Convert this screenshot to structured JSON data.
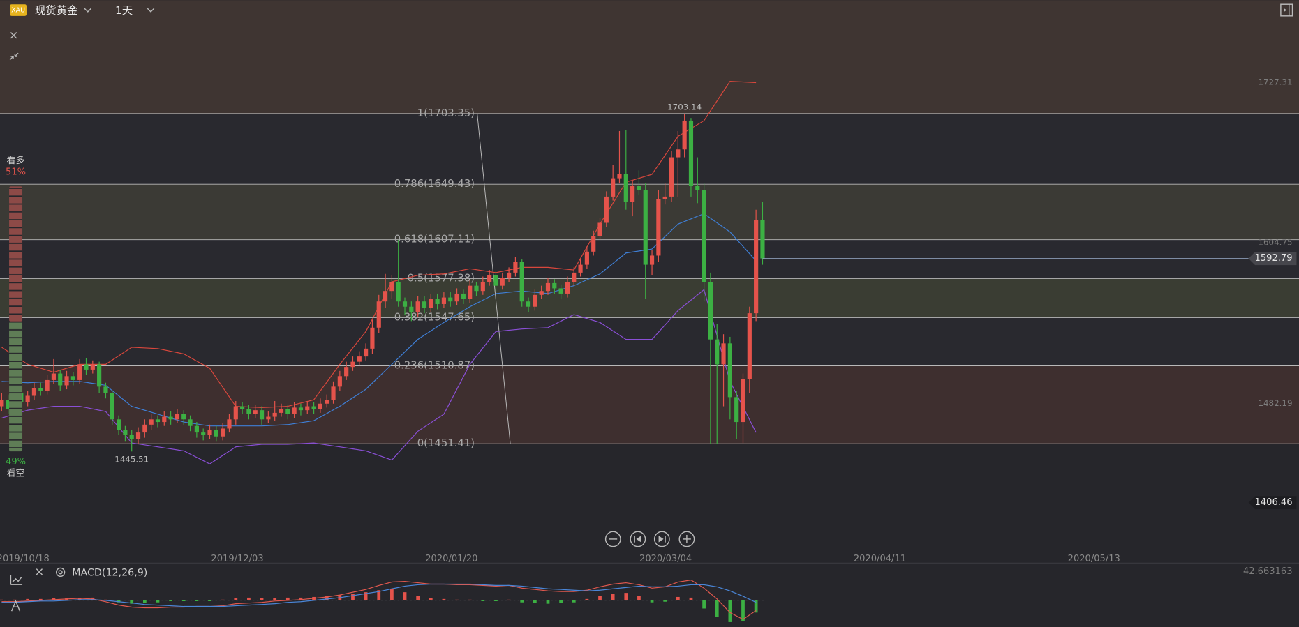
{
  "header": {
    "icon": "XAU",
    "symbol": "现货黄金",
    "interval": "1天"
  },
  "chart_data": [
    {
      "type": "candlestick",
      "ohlc": [
        [
          1480,
          1490,
          1476,
          1485
        ],
        [
          1485,
          1489,
          1474,
          1478
        ],
        [
          1478,
          1494,
          1475,
          1490
        ],
        [
          1490,
          1493,
          1479,
          1483
        ],
        [
          1483,
          1492,
          1480,
          1488
        ],
        [
          1488,
          1498,
          1485,
          1494
        ],
        [
          1494,
          1498,
          1488,
          1492
        ],
        [
          1492,
          1504,
          1489,
          1500
        ],
        [
          1500,
          1516,
          1497,
          1505
        ],
        [
          1505,
          1508,
          1492,
          1496
        ],
        [
          1496,
          1507,
          1493,
          1503
        ],
        [
          1503,
          1506,
          1496,
          1500
        ],
        [
          1500,
          1516,
          1497,
          1512
        ],
        [
          1512,
          1517,
          1504,
          1508
        ],
        [
          1508,
          1515,
          1505,
          1512
        ],
        [
          1512,
          1514,
          1490,
          1495
        ],
        [
          1495,
          1498,
          1486,
          1490
        ],
        [
          1490,
          1492,
          1466,
          1470
        ],
        [
          1470,
          1473,
          1458,
          1462
        ],
        [
          1462,
          1465,
          1453,
          1458
        ],
        [
          1458,
          1462,
          1445.51,
          1455
        ],
        [
          1455,
          1464,
          1451,
          1460
        ],
        [
          1460,
          1470,
          1456,
          1466
        ],
        [
          1466,
          1474,
          1462,
          1470
        ],
        [
          1470,
          1473,
          1464,
          1468
        ],
        [
          1468,
          1476,
          1465,
          1472
        ],
        [
          1472,
          1476,
          1466,
          1470
        ],
        [
          1470,
          1478,
          1467,
          1474
        ],
        [
          1474,
          1477,
          1466,
          1470
        ],
        [
          1470,
          1473,
          1461,
          1465
        ],
        [
          1465,
          1468,
          1456,
          1460
        ],
        [
          1460,
          1463,
          1454,
          1458
        ],
        [
          1458,
          1466,
          1455,
          1462
        ],
        [
          1462,
          1465,
          1453,
          1457
        ],
        [
          1457,
          1467,
          1454,
          1463
        ],
        [
          1463,
          1474,
          1460,
          1470
        ],
        [
          1470,
          1484,
          1466,
          1480
        ],
        [
          1480,
          1483,
          1474,
          1478
        ],
        [
          1478,
          1481,
          1470,
          1474
        ],
        [
          1474,
          1481,
          1471,
          1477
        ],
        [
          1477,
          1480,
          1466,
          1470
        ],
        [
          1470,
          1476,
          1467,
          1472
        ],
        [
          1472,
          1484,
          1469,
          1475
        ],
        [
          1475,
          1482,
          1472,
          1478
        ],
        [
          1478,
          1481,
          1470,
          1474
        ],
        [
          1474,
          1483,
          1471,
          1479
        ],
        [
          1479,
          1482,
          1473,
          1477
        ],
        [
          1477,
          1484,
          1474,
          1480
        ],
        [
          1480,
          1483,
          1474,
          1478
        ],
        [
          1478,
          1486,
          1475,
          1482
        ],
        [
          1482,
          1489,
          1479,
          1485
        ],
        [
          1485,
          1499,
          1482,
          1495
        ],
        [
          1495,
          1507,
          1492,
          1503
        ],
        [
          1503,
          1514,
          1500,
          1510
        ],
        [
          1510,
          1518,
          1507,
          1514
        ],
        [
          1514,
          1522,
          1511,
          1518
        ],
        [
          1518,
          1528,
          1515,
          1524
        ],
        [
          1524,
          1546,
          1520,
          1540
        ],
        [
          1540,
          1565,
          1536,
          1560
        ],
        [
          1560,
          1581,
          1555,
          1568
        ],
        [
          1568,
          1580,
          1562,
          1575
        ],
        [
          1575,
          1607,
          1556,
          1560
        ],
        [
          1560,
          1563,
          1550,
          1556
        ],
        [
          1556,
          1560,
          1545,
          1552
        ],
        [
          1552,
          1564,
          1548,
          1560
        ],
        [
          1560,
          1564,
          1551,
          1555
        ],
        [
          1555,
          1566,
          1552,
          1562
        ],
        [
          1562,
          1566,
          1554,
          1558
        ],
        [
          1558,
          1567,
          1555,
          1563
        ],
        [
          1563,
          1567,
          1556,
          1560
        ],
        [
          1560,
          1570,
          1557,
          1566
        ],
        [
          1566,
          1569,
          1558,
          1562
        ],
        [
          1562,
          1576,
          1559,
          1572
        ],
        [
          1572,
          1575,
          1564,
          1568
        ],
        [
          1568,
          1579,
          1565,
          1575
        ],
        [
          1575,
          1584,
          1572,
          1580
        ],
        [
          1580,
          1583,
          1568,
          1572
        ],
        [
          1572,
          1582,
          1569,
          1578
        ],
        [
          1578,
          1586,
          1575,
          1582
        ],
        [
          1582,
          1594,
          1579,
          1590
        ],
        [
          1590,
          1592,
          1556,
          1560
        ],
        [
          1560,
          1563,
          1552,
          1556
        ],
        [
          1556,
          1569,
          1553,
          1565
        ],
        [
          1565,
          1572,
          1562,
          1568
        ],
        [
          1568,
          1578,
          1565,
          1574
        ],
        [
          1574,
          1577,
          1566,
          1570
        ],
        [
          1570,
          1573,
          1562,
          1566
        ],
        [
          1566,
          1579,
          1563,
          1575
        ],
        [
          1575,
          1586,
          1572,
          1582
        ],
        [
          1582,
          1592,
          1579,
          1588
        ],
        [
          1588,
          1602,
          1585,
          1598
        ],
        [
          1598,
          1614,
          1595,
          1610
        ],
        [
          1610,
          1624,
          1607,
          1620
        ],
        [
          1620,
          1644,
          1617,
          1640
        ],
        [
          1640,
          1664,
          1637,
          1654
        ],
        [
          1654,
          1690,
          1650,
          1657
        ],
        [
          1657,
          1691,
          1630,
          1636
        ],
        [
          1636,
          1652,
          1625,
          1648
        ],
        [
          1648,
          1660,
          1641,
          1645
        ],
        [
          1645,
          1650,
          1562,
          1588
        ],
        [
          1588,
          1599,
          1580,
          1595
        ],
        [
          1595,
          1645,
          1590,
          1638
        ],
        [
          1638,
          1650,
          1634,
          1640
        ],
        [
          1640,
          1675,
          1636,
          1670
        ],
        [
          1670,
          1690,
          1640,
          1676
        ],
        [
          1676,
          1703.14,
          1670,
          1698
        ],
        [
          1698,
          1700,
          1640,
          1648
        ],
        [
          1648,
          1670,
          1635,
          1645
        ],
        [
          1645,
          1650,
          1560,
          1575
        ],
        [
          1575,
          1582,
          1451,
          1531
        ],
        [
          1531,
          1543,
          1451,
          1512
        ],
        [
          1512,
          1535,
          1480,
          1528
        ],
        [
          1528,
          1533,
          1470,
          1487
        ],
        [
          1487,
          1492,
          1455,
          1468
        ],
        [
          1468,
          1505,
          1452,
          1501
        ],
        [
          1501,
          1556,
          1490,
          1551
        ],
        [
          1551,
          1630,
          1545,
          1622
        ],
        [
          1622,
          1636,
          1588,
          1592.79
        ]
      ],
      "up_color": "#e5534b",
      "down_color": "#3cb043",
      "ylim": [
        1375.5,
        1789.9
      ],
      "yticks": [
        1727.31,
        1604.75,
        1482.19
      ],
      "axis_marker": 1406.46,
      "xticks": [
        "2019/10/18",
        "2019/12/03",
        "2020/01/20",
        "2020/03/04",
        "2020/04/11",
        "2020/05/13"
      ],
      "fib": [
        {
          "value": 1703.35,
          "label": "1(1703.35)"
        },
        {
          "value": 1649.43,
          "label": "0.786(1649.43)"
        },
        {
          "value": 1607.11,
          "label": "0.618(1607.11)"
        },
        {
          "value": 1577.38,
          "label": "0.5(1577.38)"
        },
        {
          "value": 1547.65,
          "label": "0.382(1547.65)"
        },
        {
          "value": 1510.87,
          "label": "0.236(1510.87)"
        },
        {
          "value": 1451.41,
          "label": "0(1451.41)"
        }
      ],
      "fib_colors": [
        "#3f3532",
        "#29292f",
        "#3b3a35",
        "#29292f",
        "#3a3d33",
        "#29292f",
        "#3e2f2f"
      ],
      "bands": {
        "x": [
          0,
          4,
          8,
          12,
          16,
          20,
          24,
          28,
          32,
          36,
          40,
          44,
          48,
          52,
          56,
          60,
          64,
          68,
          72,
          76,
          80,
          84,
          88,
          92,
          96,
          100,
          104,
          108,
          112,
          116
        ],
        "upper": [
          1525,
          1512,
          1506,
          1512,
          1512,
          1525,
          1524,
          1520,
          1509,
          1480,
          1479,
          1480,
          1485,
          1512,
          1537,
          1575,
          1580,
          1581,
          1585,
          1582,
          1586,
          1586,
          1584,
          1619,
          1651,
          1657,
          1686,
          1698,
          1728,
          1727
        ],
        "middle": [
          1499,
          1498,
          1499,
          1499,
          1496,
          1480,
          1474,
          1468,
          1465,
          1465,
          1465,
          1466,
          1469,
          1480,
          1493,
          1512,
          1531,
          1544,
          1556,
          1566,
          1568,
          1566,
          1572,
          1581,
          1597,
          1600,
          1619,
          1627,
          1613,
          1591
        ],
        "lower": [
          1471,
          1477,
          1480,
          1480,
          1476,
          1452,
          1449,
          1446,
          1436,
          1449,
          1451,
          1451,
          1452,
          1449,
          1446,
          1439,
          1461,
          1474,
          1512,
          1537,
          1539,
          1540,
          1550,
          1544,
          1531,
          1531,
          1553,
          1569,
          1499,
          1460
        ],
        "colors": [
          "#d9473c",
          "#3f7fd6",
          "#8a4fd6"
        ]
      }
    },
    {
      "type": "macd",
      "title": "MACD(12,26,9)",
      "x": [
        0,
        2,
        4,
        6,
        8,
        10,
        12,
        14,
        16,
        18,
        20,
        22,
        24,
        26,
        28,
        30,
        32,
        34,
        36,
        38,
        40,
        42,
        44,
        46,
        48,
        50,
        52,
        54,
        56,
        58,
        60,
        62,
        64,
        66,
        68,
        70,
        72,
        74,
        76,
        78,
        80,
        82,
        84,
        86,
        88,
        90,
        92,
        94,
        96,
        98,
        100,
        102,
        104,
        106,
        108,
        110,
        112,
        114,
        116
      ],
      "hist": [
        1,
        1,
        2,
        2,
        3,
        3,
        3,
        4,
        1,
        -3,
        -5,
        -4,
        -3,
        -1,
        -1,
        -1,
        -1,
        1,
        3,
        4,
        3,
        3,
        4,
        4,
        5,
        6,
        8,
        10,
        12,
        15,
        17,
        12,
        6,
        3,
        2,
        1,
        1,
        -1,
        -1,
        1,
        -3,
        -4,
        -5,
        -4,
        -3,
        2,
        6,
        10,
        11,
        6,
        -3,
        -2,
        5,
        4,
        -12,
        -24,
        -32,
        -30,
        -18
      ],
      "dif": [
        -2,
        -2,
        -1,
        0,
        1,
        2,
        3,
        2,
        -2,
        -7,
        -10,
        -11,
        -11,
        -10,
        -10,
        -9,
        -9,
        -8,
        -5,
        -4,
        -3,
        -1,
        0,
        1,
        3,
        5,
        8,
        12,
        16,
        22,
        27,
        28,
        26,
        24,
        24,
        23,
        23,
        22,
        21,
        22,
        18,
        16,
        14,
        13,
        13,
        15,
        20,
        24,
        26,
        23,
        18,
        20,
        27,
        30,
        18,
        2,
        -18,
        -28,
        -15
      ],
      "dea": [
        -3,
        -3,
        -2,
        -1,
        -1,
        0,
        1,
        1,
        0,
        -2,
        -4,
        -6,
        -7,
        -8,
        -9,
        -9,
        -9,
        -9,
        -8,
        -7,
        -6,
        -5,
        -3,
        -2,
        0,
        2,
        4,
        7,
        10,
        13,
        17,
        21,
        23,
        24,
        24,
        24,
        24,
        23,
        22,
        22,
        21,
        19,
        17,
        16,
        15,
        14,
        15,
        17,
        19,
        21,
        20,
        20,
        21,
        23,
        23,
        20,
        14,
        6,
        -3
      ],
      "colors": [
        "#e5534b",
        "#3cb043",
        "#e0584e",
        "#4a86d8"
      ],
      "ylim": [
        -39,
        55
      ],
      "yticks": [
        42.663163
      ]
    },
    {
      "type": "gauge",
      "categories": [
        "看多",
        "看空"
      ],
      "values": [
        51,
        49
      ],
      "value_labels": [
        "51%",
        "49%"
      ],
      "colors": [
        "#8d4a47",
        "#5f7d56"
      ]
    }
  ]
}
